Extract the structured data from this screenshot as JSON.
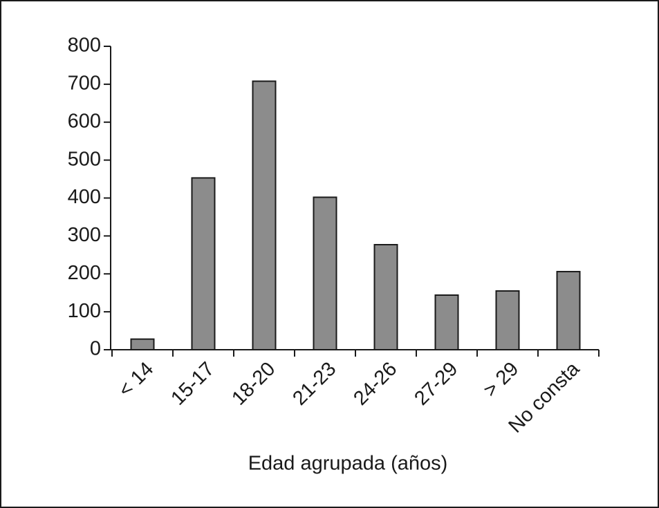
{
  "chart_data": {
    "type": "bar",
    "x_label": "Edad agrupada (años)",
    "categories": [
      "< 14",
      "15-17",
      "18-20",
      "21-23",
      "24-26",
      "27-29",
      "> 29",
      "No consta"
    ],
    "values": [
      28,
      453,
      708,
      402,
      277,
      144,
      155,
      206
    ],
    "color": "#8c8c8c",
    "ylim": [
      0,
      800
    ],
    "yticks": [
      0,
      100,
      200,
      300,
      400,
      500,
      600,
      700,
      800
    ]
  }
}
